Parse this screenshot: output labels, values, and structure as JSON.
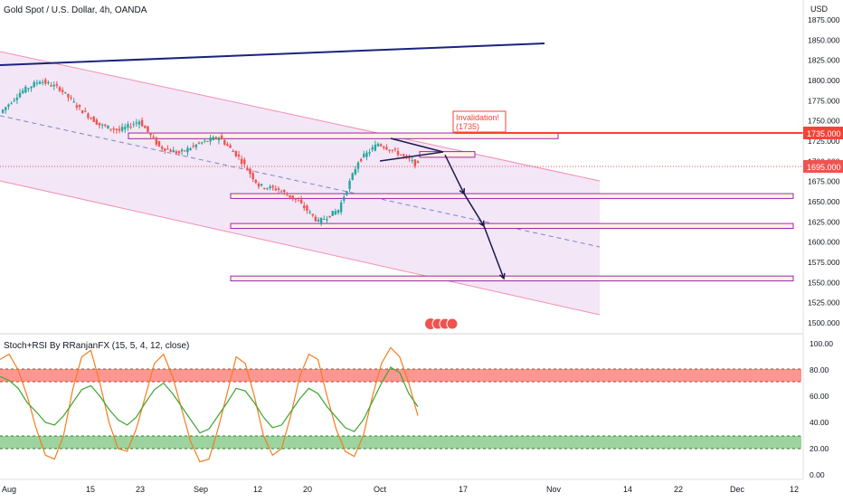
{
  "header": {
    "symbol_title": "Gold Spot / U.S. Dollar, 4h, OANDA",
    "currency": "USD"
  },
  "oscillator": {
    "title": "Stoch+RSI By RRanjanFX (15, 5, 4, 12, close)"
  },
  "annotations": {
    "invalidation_label": "Invalidation!",
    "invalidation_value": "(1735)"
  },
  "price_badges": {
    "resistance": "1735.000",
    "current": "1695.000"
  },
  "colors": {
    "up_candle": "#26a69a",
    "down_candle": "#ef5350",
    "channel_fill": "#f3e6f7",
    "channel_line": "#f48fb1",
    "trendline": "#1a237e",
    "zone_fill": "#fff3e0",
    "zone_border": "#9c27b0",
    "resistance_line": "#f44336",
    "arrows": "#1a1a4e",
    "stoch_line": "#f57c20",
    "rsi_line": "#3fa52e",
    "overbought_band": "#f44336",
    "oversold_band": "#4caf50"
  },
  "chart_data": [
    {
      "type": "candlestick",
      "title": "Gold Spot / U.S. Dollar, 4h, OANDA",
      "ylabel": "USD",
      "y_ticks": [
        "1875.000",
        "1850.000",
        "1825.000",
        "1800.000",
        "1775.000",
        "1750.000",
        "1725.000",
        "1700.000",
        "1675.000",
        "1650.000",
        "1625.000",
        "1600.000",
        "1575.000",
        "1550.000",
        "1525.000",
        "1500.000"
      ],
      "x_ticks": [
        "Aug",
        "15",
        "23",
        "Sep",
        "12",
        "20",
        "Oct",
        "17",
        "Nov",
        "14",
        "22",
        "Dec",
        "12"
      ],
      "ylim": [
        1490,
        1885
      ],
      "price_path": [
        {
          "x": "Aug 1",
          "y": 1760
        },
        {
          "x": "Aug 5",
          "y": 1785
        },
        {
          "x": "Aug 10",
          "y": 1800
        },
        {
          "x": "Aug 15",
          "y": 1790
        },
        {
          "x": "Aug 18",
          "y": 1765
        },
        {
          "x": "Aug 23",
          "y": 1745
        },
        {
          "x": "Aug 26",
          "y": 1738
        },
        {
          "x": "Aug 30",
          "y": 1750
        },
        {
          "x": "Sep 1",
          "y": 1718
        },
        {
          "x": "Sep 6",
          "y": 1710
        },
        {
          "x": "Sep 9",
          "y": 1722
        },
        {
          "x": "Sep 12",
          "y": 1730
        },
        {
          "x": "Sep 15",
          "y": 1705
        },
        {
          "x": "Sep 18",
          "y": 1670
        },
        {
          "x": "Sep 21",
          "y": 1665
        },
        {
          "x": "Sep 25",
          "y": 1650
        },
        {
          "x": "Sep 28",
          "y": 1625
        },
        {
          "x": "Sep 30",
          "y": 1640
        },
        {
          "x": "Oct 3",
          "y": 1700
        },
        {
          "x": "Oct 5",
          "y": 1722
        },
        {
          "x": "Oct 7",
          "y": 1710
        },
        {
          "x": "Oct 10",
          "y": 1695
        }
      ],
      "horizontal_levels": [
        {
          "label": "1735.000",
          "value": 1735
        },
        {
          "label": "1695.000",
          "value": 1695
        }
      ],
      "zones": [
        {
          "from": 1728,
          "to": 1735
        },
        {
          "from": 1705,
          "to": 1712
        },
        {
          "from": 1654,
          "to": 1660
        },
        {
          "from": 1617,
          "to": 1623
        },
        {
          "from": 1552,
          "to": 1558
        }
      ],
      "projected_path": [
        {
          "x": "Oct 12",
          "y": 1708
        },
        {
          "x": "Oct 17",
          "y": 1660
        },
        {
          "x": "Oct 20",
          "y": 1620
        },
        {
          "x": "Oct 25",
          "y": 1555
        }
      ]
    },
    {
      "type": "line",
      "title": "Stoch+RSI By RRanjanFX (15, 5, 4, 12, close)",
      "y_ticks": [
        "100.00",
        "80.00",
        "60.00",
        "40.00",
        "20.00",
        "0.00"
      ],
      "ylim": [
        0,
        100
      ],
      "bands": [
        {
          "name": "overbought",
          "from": 70,
          "to": 80
        },
        {
          "name": "oversold",
          "from": 20,
          "to": 30
        }
      ],
      "series": [
        {
          "values": [
            88,
            92,
            80,
            60,
            35,
            15,
            12,
            30,
            65,
            90,
            95,
            70,
            40,
            20,
            18,
            35,
            60,
            85,
            92,
            75,
            50,
            25,
            10,
            12,
            35,
            62,
            90,
            85,
            60,
            30,
            15,
            20,
            45,
            75,
            92,
            88,
            60,
            35,
            18,
            14,
            30,
            60,
            85,
            97,
            90,
            70,
            45
          ]
        },
        {
          "values": [
            75,
            72,
            66,
            55,
            48,
            40,
            38,
            45,
            55,
            65,
            68,
            60,
            50,
            42,
            38,
            44,
            55,
            65,
            70,
            62,
            52,
            42,
            32,
            35,
            45,
            55,
            66,
            64,
            55,
            44,
            36,
            38,
            48,
            58,
            66,
            62,
            52,
            44,
            36,
            33,
            42,
            56,
            70,
            82,
            78,
            62,
            52
          ]
        }
      ]
    }
  ]
}
